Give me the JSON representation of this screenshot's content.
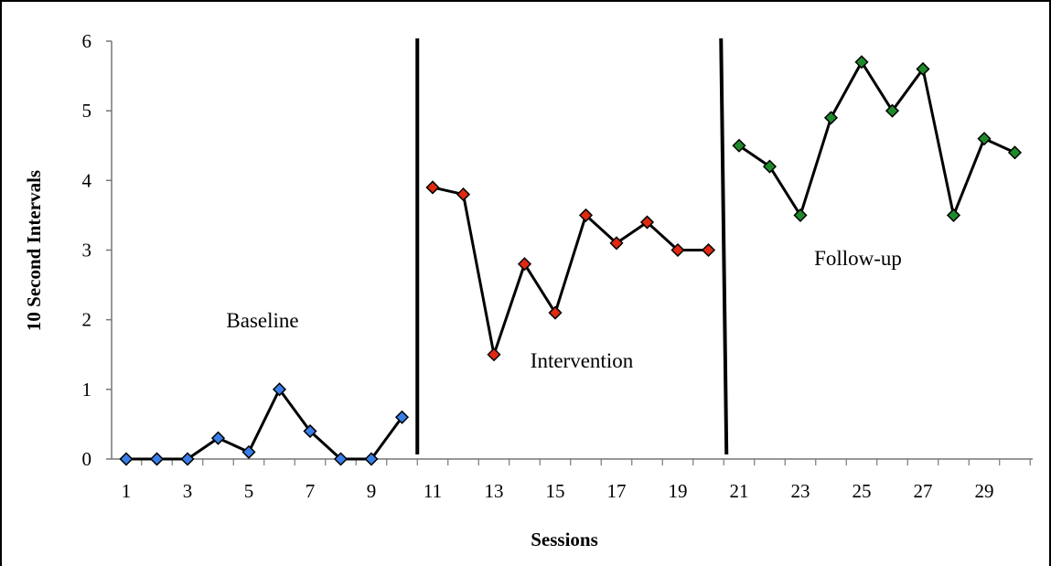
{
  "chart_data": {
    "type": "line",
    "xlabel": "Sessions",
    "ylabel": "10 Second Intervals",
    "ylim": [
      0,
      6
    ],
    "xlim": [
      1,
      30
    ],
    "yticks": [
      "0",
      "1",
      "2",
      "3",
      "4",
      "5",
      "6"
    ],
    "xticks": [
      "1",
      "3",
      "5",
      "7",
      "9",
      "11",
      "13",
      "15",
      "17",
      "19",
      "21",
      "23",
      "25",
      "27",
      "29"
    ],
    "grid": false,
    "phase_lines_after_session": [
      10.5,
      20.5
    ],
    "phases": [
      {
        "name": "Baseline",
        "color": "#3a7ee8",
        "x": [
          1,
          2,
          3,
          4,
          5,
          6,
          7,
          8,
          9,
          10
        ],
        "values": [
          0,
          0,
          0,
          0.3,
          0.1,
          1.0,
          0.4,
          0,
          0,
          0.6
        ]
      },
      {
        "name": "Intervention",
        "color": "#e02a10",
        "x": [
          11,
          12,
          13,
          14,
          15,
          16,
          17,
          18,
          19,
          20
        ],
        "values": [
          3.9,
          3.8,
          1.5,
          2.8,
          2.1,
          3.5,
          3.1,
          3.4,
          3.0,
          3.0
        ]
      },
      {
        "name": "Follow-up",
        "color": "#1e8a2a",
        "x": [
          21,
          22,
          23,
          24,
          25,
          26,
          27,
          28,
          29,
          30
        ],
        "values": [
          4.5,
          4.2,
          3.5,
          4.9,
          5.7,
          5.0,
          5.6,
          3.5,
          4.6,
          4.4
        ]
      }
    ]
  }
}
